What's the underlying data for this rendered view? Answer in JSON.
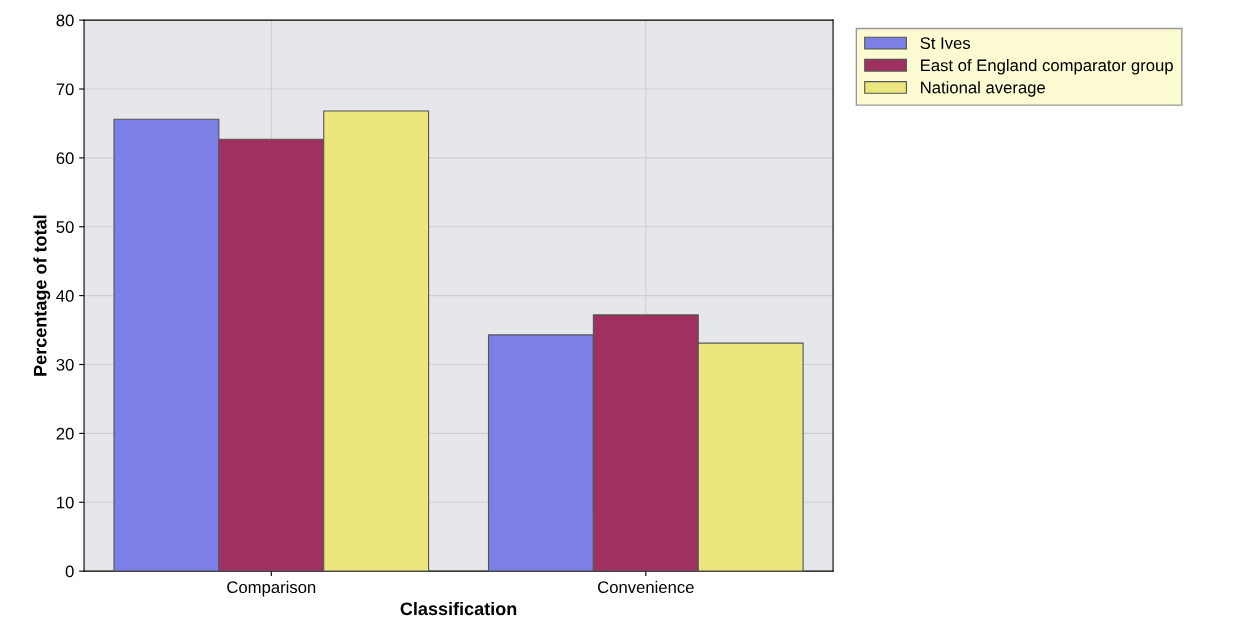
{
  "chart_data": {
    "type": "bar",
    "xlabel": "Classification",
    "ylabel": "Percentage of total",
    "categories": [
      "Comparison",
      "Convenience"
    ],
    "series": [
      {
        "name": "St Ives",
        "color": "#7b7fe6",
        "values": [
          65.6,
          34.3
        ]
      },
      {
        "name": "East of England comparator group",
        "color": "#a0305f",
        "values": [
          62.7,
          37.2
        ]
      },
      {
        "name": "National average",
        "color": "#ebe77e",
        "values": [
          66.8,
          33.1
        ]
      }
    ],
    "ylim": [
      0,
      80
    ],
    "yticks": [
      0,
      10,
      20,
      30,
      40,
      50,
      60,
      70,
      80
    ],
    "grid": true,
    "legend": "top right"
  }
}
